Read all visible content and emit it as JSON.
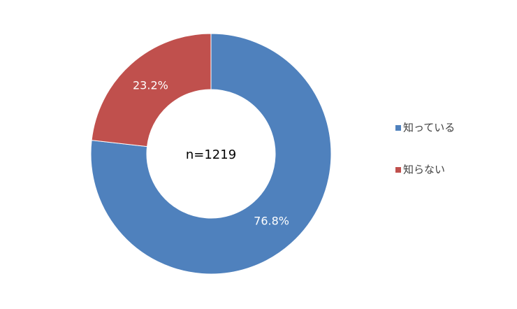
{
  "chart_data": {
    "type": "donut",
    "categories": [
      "知っている",
      "知らない"
    ],
    "values": [
      76.8,
      23.2
    ],
    "value_labels": [
      "76.8%",
      "23.2%"
    ],
    "colors": [
      "#4f81bd",
      "#c0504d"
    ],
    "center_label": "n=1219",
    "legend": "right"
  }
}
